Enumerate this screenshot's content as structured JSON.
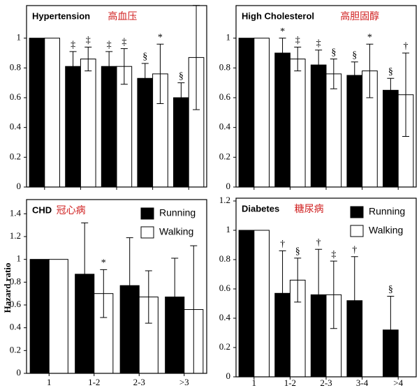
{
  "chart_data": [
    {
      "type": "bar",
      "title": "Hypertension",
      "subtitle": "高血压",
      "categories": [
        null,
        null,
        null,
        null,
        null
      ],
      "series": [
        {
          "color": "#000000",
          "values": [
            1,
            0.81,
            0.81,
            0.73,
            0.6
          ],
          "errors": [
            null,
            0.1,
            0.1,
            0.1,
            0.1
          ],
          "annotations": [
            null,
            "‡",
            "‡",
            "§",
            "§"
          ]
        },
        {
          "color": "#ffffff",
          "values": [
            1,
            0.86,
            0.81,
            0.76,
            0.87
          ],
          "errors": [
            null,
            0.08,
            0.12,
            0.2,
            0.35
          ],
          "annotations": [
            null,
            "‡",
            "‡",
            "*",
            null
          ]
        }
      ],
      "ylim": [
        0,
        1.2
      ],
      "yticks": [
        0,
        0.2,
        0.4,
        0.6,
        0.8,
        1
      ]
    },
    {
      "type": "bar",
      "title": "High Cholesterol",
      "subtitle": "高胆固醇",
      "categories": [
        null,
        null,
        null,
        null,
        null
      ],
      "series": [
        {
          "color": "#000000",
          "values": [
            1,
            0.9,
            0.82,
            0.75,
            0.65
          ],
          "errors": [
            null,
            0.1,
            0.1,
            0.09,
            0.08
          ],
          "annotations": [
            null,
            "*",
            "‡",
            "§",
            "§"
          ]
        },
        {
          "color": "#ffffff",
          "values": [
            1,
            0.86,
            0.76,
            0.78,
            0.62
          ],
          "errors": [
            null,
            0.08,
            0.1,
            0.18,
            0.28
          ],
          "annotations": [
            null,
            "‡",
            "§",
            "*",
            "†"
          ]
        }
      ],
      "ylim": [
        0,
        1.2
      ],
      "yticks": [
        0,
        0.2,
        0.4,
        0.6,
        0.8,
        1
      ]
    },
    {
      "type": "bar",
      "title": "CHD",
      "subtitle": "冠心病",
      "y_label": "Hazard ratio",
      "legend": "top-right",
      "categories": [
        "1",
        "1-2",
        "2-3",
        ">3"
      ],
      "series": [
        {
          "name": "Running",
          "color": "#000000",
          "values": [
            1,
            0.87,
            0.77,
            0.67
          ],
          "errors": [
            null,
            0.45,
            0.42,
            0.34
          ],
          "annotations": [
            null,
            null,
            null,
            null
          ]
        },
        {
          "name": "Walking",
          "color": "#ffffff",
          "values": [
            1,
            0.7,
            0.67,
            0.56
          ],
          "errors": [
            null,
            0.21,
            0.23,
            0.56
          ],
          "annotations": [
            null,
            "*",
            null,
            null
          ]
        }
      ],
      "ylim": [
        0,
        1.5
      ],
      "yticks": [
        0,
        0.2,
        0.4,
        0.6,
        0.8,
        1,
        1.2,
        1.4
      ]
    },
    {
      "type": "bar",
      "title": "Diabetes",
      "subtitle": "糖尿病",
      "legend": "top-right",
      "categories": [
        "1",
        "1-2",
        "2-3",
        "3-4",
        ">4"
      ],
      "series": [
        {
          "name": "Running",
          "color": "#000000",
          "values": [
            1,
            0.57,
            0.56,
            0.52,
            0.32
          ],
          "errors": [
            null,
            0.29,
            0.31,
            0.3,
            0.23
          ],
          "annotations": [
            null,
            "†",
            "†",
            "†",
            "§"
          ]
        },
        {
          "name": "Walking",
          "color": "#ffffff",
          "values": [
            1,
            0.66,
            0.56,
            null,
            null
          ],
          "errors": [
            null,
            0.15,
            0.23,
            null,
            null
          ],
          "annotations": [
            null,
            "§",
            "‡",
            null,
            null
          ]
        }
      ],
      "ylim": [
        0,
        1.2
      ],
      "yticks": [
        0,
        0.2,
        0.4,
        0.6,
        0.8,
        1,
        1.2
      ]
    }
  ]
}
